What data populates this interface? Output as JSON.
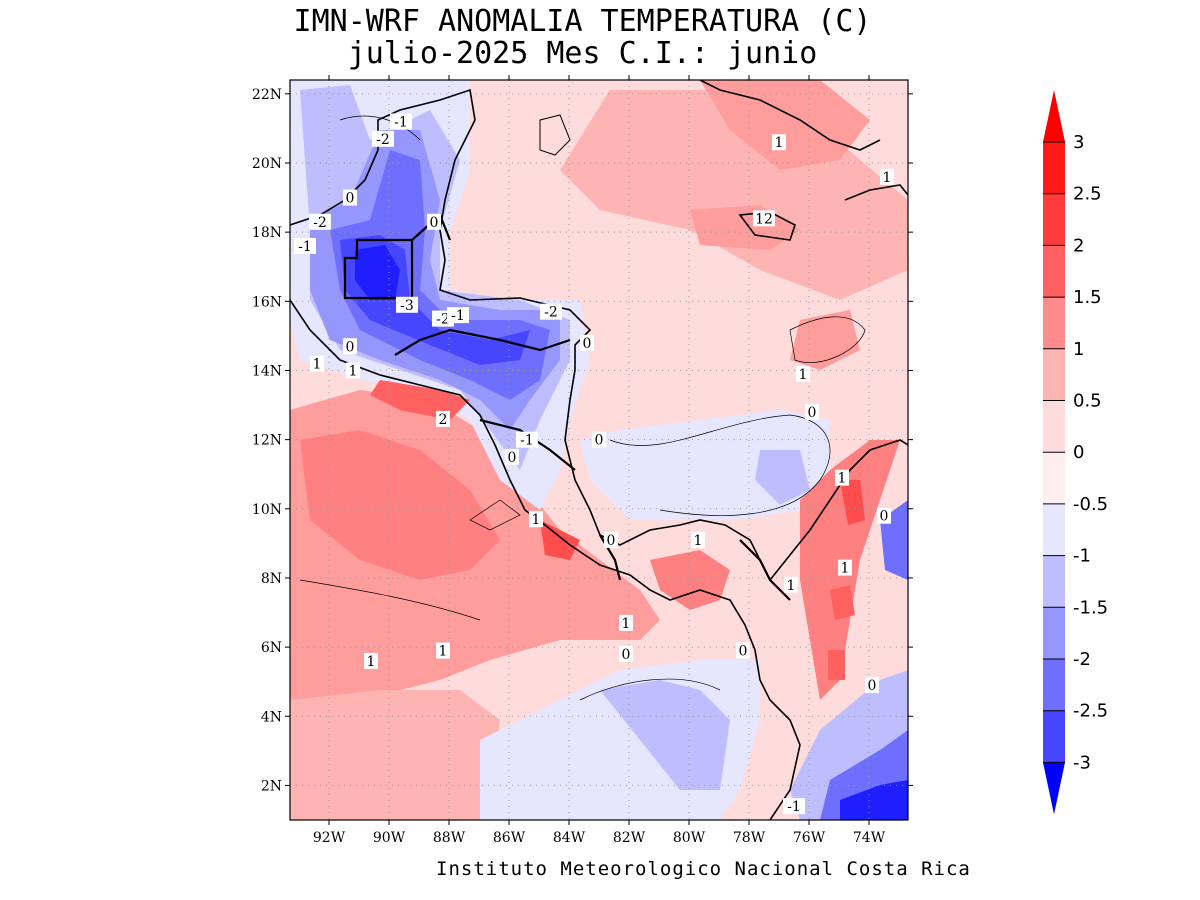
{
  "title": {
    "line1": "IMN-WRF  ANOMALIA TEMPERATURA (C)",
    "line2": "julio-2025 Mes C.I.: junio"
  },
  "credit": "Instituto Meteorologico Nacional Costa Rica",
  "axes": {
    "lat_ticks": [
      "22N",
      "20N",
      "18N",
      "16N",
      "14N",
      "12N",
      "10N",
      "8N",
      "6N",
      "4N",
      "2N"
    ],
    "lat_values": [
      22,
      20,
      18,
      16,
      14,
      12,
      10,
      8,
      6,
      4,
      2
    ],
    "lon_ticks": [
      "92W",
      "90W",
      "88W",
      "86W",
      "84W",
      "82W",
      "80W",
      "78W",
      "76W",
      "74W"
    ],
    "lon_values": [
      -92,
      -90,
      -88,
      -86,
      -84,
      -82,
      -80,
      -78,
      -76,
      -74
    ],
    "lat_range": [
      1,
      22.4
    ],
    "lon_range": [
      -93.3,
      -72.7
    ],
    "grid": "dotted"
  },
  "colorbar": {
    "labels": [
      "3",
      "2.5",
      "2",
      "1.5",
      "1",
      "0.5",
      "0",
      "-0.5",
      "-1",
      "-1.5",
      "-2",
      "-2.5",
      "-3"
    ],
    "levels": [
      3,
      2.5,
      2,
      1.5,
      1,
      0.5,
      0,
      -0.5,
      -1,
      -1.5,
      -2,
      -2.5,
      -3
    ],
    "colors": [
      "#ff1a1a",
      "#ff3c3c",
      "#ff6060",
      "#ff8c8c",
      "#ffb4b4",
      "#ffdcdc",
      "#ffeeee",
      "#e6e6ff",
      "#bebeff",
      "#9696ff",
      "#6e6eff",
      "#4646ff",
      "#1e1eff"
    ],
    "top_color": "#ff0000",
    "bottom_color": "#0000ff"
  },
  "contour_labels": [
    {
      "text": "-1",
      "lon": -89.6,
      "lat": 21.2
    },
    {
      "text": "-2",
      "lon": -90.2,
      "lat": 20.7
    },
    {
      "text": "0",
      "lon": -91.3,
      "lat": 19.0
    },
    {
      "text": "-2",
      "lon": -92.3,
      "lat": 18.3
    },
    {
      "text": "0",
      "lon": -88.5,
      "lat": 18.3
    },
    {
      "text": "-1",
      "lon": -92.8,
      "lat": 17.6
    },
    {
      "text": "-3",
      "lon": -89.4,
      "lat": 15.9
    },
    {
      "text": "-2",
      "lon": -88.2,
      "lat": 15.5
    },
    {
      "text": "-1",
      "lon": -87.7,
      "lat": 15.6
    },
    {
      "text": "-2",
      "lon": -84.6,
      "lat": 15.7
    },
    {
      "text": "0",
      "lon": -83.4,
      "lat": 14.8
    },
    {
      "text": "0",
      "lon": -91.3,
      "lat": 14.7
    },
    {
      "text": "1",
      "lon": -92.4,
      "lat": 14.2
    },
    {
      "text": "1",
      "lon": -91.2,
      "lat": 14.0
    },
    {
      "text": "2",
      "lon": -88.2,
      "lat": 12.6
    },
    {
      "text": "-1",
      "lon": -85.4,
      "lat": 12.0
    },
    {
      "text": "0",
      "lon": -83.0,
      "lat": 12.0
    },
    {
      "text": "0",
      "lon": -85.9,
      "lat": 11.5
    },
    {
      "text": "1",
      "lon": -77.0,
      "lat": 20.6
    },
    {
      "text": "12",
      "lon": -77.5,
      "lat": 18.4
    },
    {
      "text": "1",
      "lon": -73.4,
      "lat": 19.6
    },
    {
      "text": "1",
      "lon": -76.2,
      "lat": 13.9
    },
    {
      "text": "0",
      "lon": -75.9,
      "lat": 12.8
    },
    {
      "text": "1",
      "lon": -74.9,
      "lat": 10.9
    },
    {
      "text": "0",
      "lon": -73.5,
      "lat": 9.8
    },
    {
      "text": "1",
      "lon": -85.1,
      "lat": 9.7
    },
    {
      "text": "0",
      "lon": -82.6,
      "lat": 9.1
    },
    {
      "text": "1",
      "lon": -79.7,
      "lat": 9.1
    },
    {
      "text": "1",
      "lon": -76.6,
      "lat": 7.8
    },
    {
      "text": "1",
      "lon": -74.8,
      "lat": 8.3
    },
    {
      "text": "1",
      "lon": -82.1,
      "lat": 6.7
    },
    {
      "text": "0",
      "lon": -82.1,
      "lat": 5.8
    },
    {
      "text": "0",
      "lon": -78.2,
      "lat": 5.9
    },
    {
      "text": "1",
      "lon": -88.2,
      "lat": 5.9
    },
    {
      "text": "1",
      "lon": -90.6,
      "lat": 5.6
    },
    {
      "text": "0",
      "lon": -73.9,
      "lat": 4.9
    },
    {
      "text": "-1",
      "lon": -76.5,
      "lat": 1.4
    }
  ]
}
